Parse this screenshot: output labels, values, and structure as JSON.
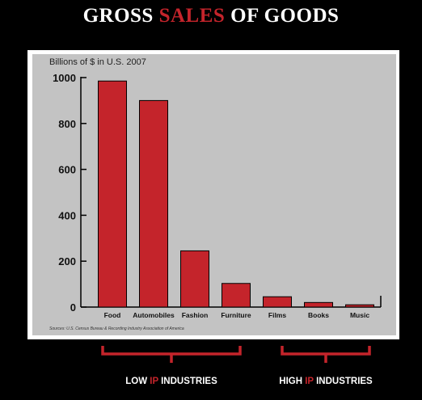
{
  "title": {
    "part1": "GROSS ",
    "part2": "SALES",
    "part3": " OF GOODS"
  },
  "colors": {
    "accent": "#c4242b",
    "plot_bg": "#c3c3c3",
    "bar": "#c4242b"
  },
  "chart_data": {
    "type": "bar",
    "ylabel": "Billions of $ in U.S. 2007",
    "categories": [
      "Food",
      "Automobiles",
      "Fashion",
      "Furniture",
      "Films",
      "Books",
      "Music"
    ],
    "values": [
      985,
      900,
      245,
      103,
      45,
      20,
      10
    ],
    "ylim": [
      0,
      1000
    ],
    "yticks": [
      0,
      200,
      400,
      600,
      800,
      1000
    ],
    "grid": false,
    "source": "Sources: U.S. Census Bureau & Recording Industry Association of America"
  },
  "groups": {
    "low": {
      "pre": "LOW ",
      "accent": "IP",
      "post": " INDUSTRIES"
    },
    "high": {
      "pre": "HIGH ",
      "accent": "IP",
      "post": " INDUSTRIES"
    }
  }
}
